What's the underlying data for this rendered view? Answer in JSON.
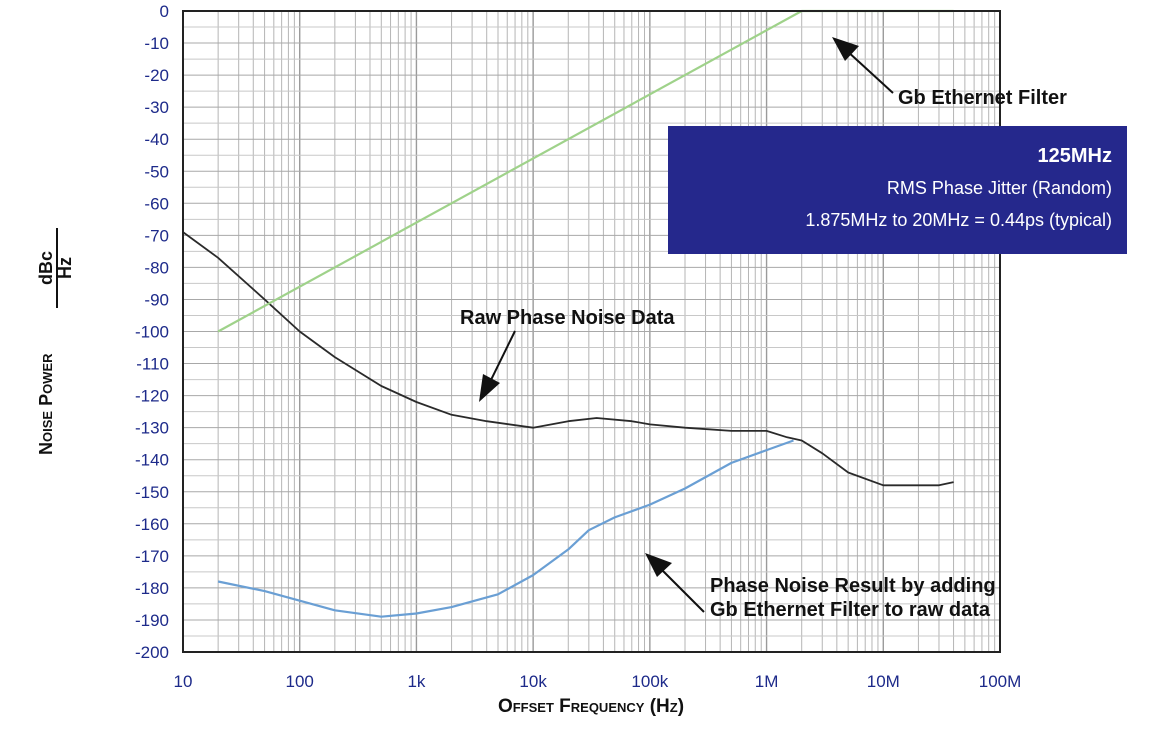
{
  "chart_data": {
    "type": "line",
    "title": "",
    "xlabel": "Offset Frequency (Hz)",
    "ylabel": "Noise Power",
    "ylabel_unit_num": "dBc",
    "ylabel_unit_den": "Hz",
    "x_scale": "log",
    "xlim": [
      10,
      100000000
    ],
    "ylim": [
      -200,
      0
    ],
    "grid": true,
    "x_ticks": [
      {
        "value": 10,
        "label": "10"
      },
      {
        "value": 100,
        "label": "100"
      },
      {
        "value": 1000,
        "label": "1k"
      },
      {
        "value": 10000,
        "label": "10k"
      },
      {
        "value": 100000,
        "label": "100k"
      },
      {
        "value": 1000000,
        "label": "1M"
      },
      {
        "value": 10000000,
        "label": "10M"
      },
      {
        "value": 100000000,
        "label": "100M"
      }
    ],
    "y_ticks": [
      0,
      -10,
      -20,
      -30,
      -40,
      -50,
      -60,
      -70,
      -80,
      -90,
      -100,
      -110,
      -120,
      -130,
      -140,
      -150,
      -160,
      -170,
      -180,
      -190,
      -200
    ],
    "series": [
      {
        "key": "raw",
        "color": "#2a2a2a",
        "x": [
          10,
          20,
          50,
          100,
          200,
          500,
          1000,
          2000,
          4000,
          10000,
          20000,
          35000,
          70000,
          100000,
          200000,
          500000,
          1000000,
          1500000,
          2000000,
          3000000,
          5000000,
          10000000,
          20000000,
          30000000,
          40000000
        ],
        "y": [
          -69,
          -77,
          -90,
          -100,
          -108,
          -117,
          -122,
          -126,
          -128,
          -130,
          -128,
          -127,
          -128,
          -129,
          -130,
          -131,
          -131,
          -133,
          -134,
          -138,
          -144,
          -148,
          -148,
          -148,
          -147
        ]
      },
      {
        "key": "filter",
        "color": "#9fd28a",
        "x": [
          20,
          2000000,
          40000000
        ],
        "y": [
          -100,
          0,
          0
        ]
      },
      {
        "key": "result",
        "color": "#6a9fd4",
        "x": [
          20,
          50,
          100,
          200,
          500,
          1000,
          2000,
          5000,
          10000,
          20000,
          30000,
          50000,
          100000,
          200000,
          500000,
          1000000,
          1700000
        ],
        "y": [
          -178,
          -181,
          -184,
          -187,
          -189,
          -188,
          -186,
          -182,
          -176,
          -168,
          -162,
          -158,
          -154,
          -149,
          -141,
          -137,
          -134
        ]
      }
    ],
    "annotations": [
      {
        "text": "Gb Ethernet Filter"
      },
      {
        "text": "Raw Phase Noise Data"
      },
      {
        "lines": [
          "Phase Noise Result by adding",
          "Gb Ethernet Filter to raw data"
        ]
      }
    ],
    "info_box": {
      "title": "125MHz",
      "line1": "RMS Phase Jitter (Random)",
      "line2": "1.875MHz to 20MHz = 0.44ps (typical)",
      "background": "#25288c"
    }
  }
}
